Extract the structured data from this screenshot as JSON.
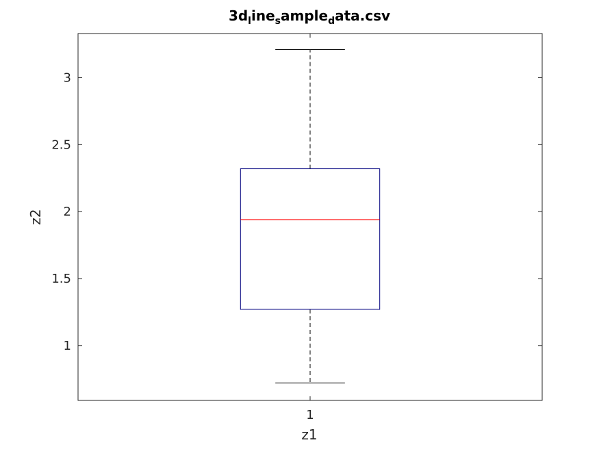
{
  "chart_data": {
    "type": "box",
    "title_parts": [
      {
        "text": "3d",
        "sub": false
      },
      {
        "text": "l",
        "sub": true
      },
      {
        "text": "ine",
        "sub": false
      },
      {
        "text": "s",
        "sub": true
      },
      {
        "text": "ample",
        "sub": false
      },
      {
        "text": "d",
        "sub": true
      },
      {
        "text": "ata.csv",
        "sub": false
      }
    ],
    "xlabel": "z1",
    "ylabel": "z2",
    "x_ticks": [
      "1"
    ],
    "y_ticks": [
      {
        "value": 1,
        "label": "1"
      },
      {
        "value": 1.5,
        "label": "1.5"
      },
      {
        "value": 2,
        "label": "2"
      },
      {
        "value": 2.5,
        "label": "2.5"
      },
      {
        "value": 3,
        "label": "3"
      }
    ],
    "ylim": [
      0.59,
      3.33
    ],
    "xlim": [
      0.5,
      1.5
    ],
    "grid": false,
    "boxes": [
      {
        "category": "1",
        "whisker_low": 0.72,
        "q1": 1.27,
        "median": 1.94,
        "q3": 2.32,
        "whisker_high": 3.21
      }
    ],
    "colors": {
      "box": "#00007f",
      "median": "#ff0000",
      "whisker": "#000000",
      "axis": "#262626"
    }
  }
}
